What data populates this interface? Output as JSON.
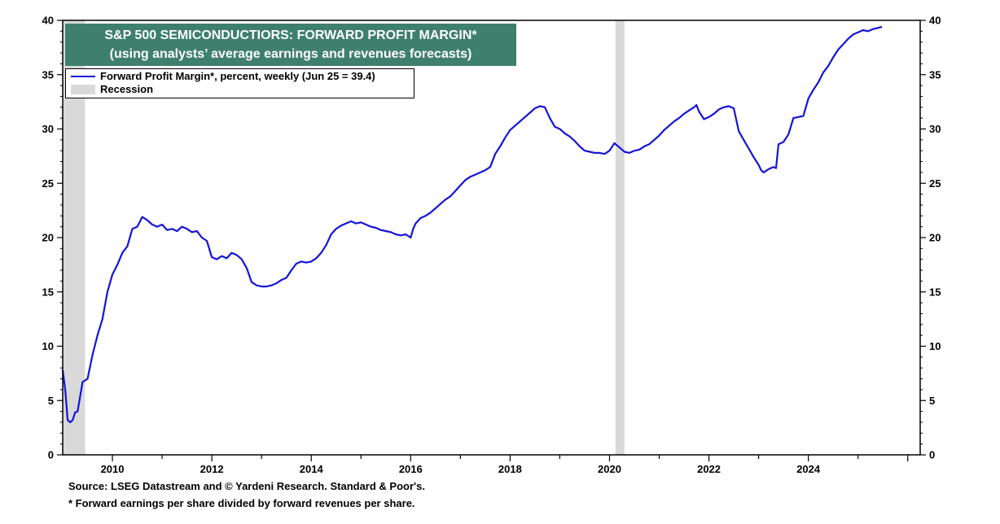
{
  "colors": {
    "line": "#1414d8",
    "recession": "#d9d9d9",
    "title_bg": "#3f7f6e",
    "axis": "#000000"
  },
  "chart_data": {
    "type": "line",
    "title": "S&P 500 SEMICONDUCTIORS: FORWARD PROFIT MARGIN*",
    "subtitle": "(using analysts’ average earnings and revenues forecasts)",
    "xlabel": "",
    "ylabel": "",
    "xlim": [
      2009.0,
      2026.25
    ],
    "ylim": [
      0,
      40
    ],
    "y_ticks": [
      "0",
      "5",
      "10",
      "15",
      "20",
      "25",
      "30",
      "35",
      "40"
    ],
    "x_ticks": [
      "2010",
      "2012",
      "2014",
      "2016",
      "2018",
      "2020",
      "2022",
      "2024"
    ],
    "grid": false,
    "dual_y_axis": true,
    "legend": {
      "placement": "top-left",
      "entries": [
        "Forward Profit Margin*, percent, weekly (Jun 25 = 39.4)",
        "Recession"
      ]
    },
    "recessions": [
      [
        2009.0,
        2009.45
      ],
      [
        2020.12,
        2020.3
      ]
    ],
    "series": [
      {
        "name": "Forward Profit Margin*, percent, weekly (Jun 25 = 39.4)",
        "x": [
          2009.0,
          2009.05,
          2009.1,
          2009.15,
          2009.2,
          2009.25,
          2009.3,
          2009.4,
          2009.5,
          2009.6,
          2009.7,
          2009.8,
          2009.9,
          2010.0,
          2010.1,
          2010.2,
          2010.3,
          2010.4,
          2010.5,
          2010.6,
          2010.7,
          2010.8,
          2010.9,
          2011.0,
          2011.1,
          2011.2,
          2011.3,
          2011.4,
          2011.5,
          2011.6,
          2011.7,
          2011.8,
          2011.9,
          2012.0,
          2012.1,
          2012.2,
          2012.3,
          2012.4,
          2012.5,
          2012.6,
          2012.7,
          2012.8,
          2012.9,
          2013.0,
          2013.1,
          2013.2,
          2013.3,
          2013.4,
          2013.5,
          2013.6,
          2013.7,
          2013.8,
          2013.9,
          2014.0,
          2014.1,
          2014.2,
          2014.3,
          2014.4,
          2014.5,
          2014.6,
          2014.7,
          2014.8,
          2014.9,
          2015.0,
          2015.1,
          2015.2,
          2015.3,
          2015.4,
          2015.5,
          2015.6,
          2015.7,
          2015.8,
          2015.9,
          2016.0,
          2016.05,
          2016.1,
          2016.2,
          2016.3,
          2016.4,
          2016.5,
          2016.6,
          2016.7,
          2016.8,
          2016.9,
          2017.0,
          2017.1,
          2017.2,
          2017.3,
          2017.4,
          2017.5,
          2017.6,
          2017.7,
          2017.8,
          2017.9,
          2018.0,
          2018.1,
          2018.2,
          2018.3,
          2018.4,
          2018.5,
          2018.6,
          2018.7,
          2018.8,
          2018.9,
          2019.0,
          2019.1,
          2019.2,
          2019.3,
          2019.4,
          2019.5,
          2019.6,
          2019.7,
          2019.8,
          2019.9,
          2020.0,
          2020.1,
          2020.2,
          2020.3,
          2020.4,
          2020.5,
          2020.6,
          2020.7,
          2020.8,
          2020.9,
          2021.0,
          2021.1,
          2021.2,
          2021.3,
          2021.4,
          2021.5,
          2021.6,
          2021.7,
          2021.75,
          2021.8,
          2021.9,
          2022.0,
          2022.1,
          2022.2,
          2022.3,
          2022.4,
          2022.5,
          2022.6,
          2022.7,
          2022.8,
          2022.9,
          2023.0,
          2023.05,
          2023.1,
          2023.2,
          2023.3,
          2023.35,
          2023.4,
          2023.5,
          2023.6,
          2023.7,
          2023.8,
          2023.9,
          2024.0,
          2024.1,
          2024.2,
          2024.3,
          2024.4,
          2024.5,
          2024.6,
          2024.7,
          2024.8,
          2024.9,
          2025.0,
          2025.1,
          2025.2,
          2025.3,
          2025.4,
          2025.48
        ],
        "values": [
          7.8,
          6.0,
          3.2,
          3.0,
          3.2,
          3.9,
          4.0,
          6.7,
          7.0,
          9.2,
          11.0,
          12.5,
          15.0,
          16.6,
          17.5,
          18.6,
          19.2,
          20.8,
          21.0,
          21.9,
          21.6,
          21.2,
          21.0,
          21.2,
          20.7,
          20.8,
          20.6,
          21.0,
          20.8,
          20.5,
          20.6,
          20.0,
          19.7,
          18.2,
          18.0,
          18.3,
          18.1,
          18.6,
          18.4,
          18.0,
          17.2,
          15.9,
          15.6,
          15.5,
          15.5,
          15.6,
          15.8,
          16.1,
          16.3,
          17.0,
          17.6,
          17.8,
          17.7,
          17.8,
          18.1,
          18.6,
          19.3,
          20.3,
          20.8,
          21.1,
          21.3,
          21.5,
          21.3,
          21.4,
          21.2,
          21.0,
          20.9,
          20.7,
          20.6,
          20.5,
          20.3,
          20.2,
          20.3,
          20.0,
          20.8,
          21.3,
          21.8,
          22.0,
          22.3,
          22.7,
          23.1,
          23.5,
          23.8,
          24.3,
          24.8,
          25.3,
          25.6,
          25.8,
          26.0,
          26.2,
          26.5,
          27.7,
          28.4,
          29.2,
          29.9,
          30.3,
          30.7,
          31.1,
          31.5,
          31.9,
          32.1,
          32.0,
          31.0,
          30.2,
          30.0,
          29.6,
          29.3,
          28.9,
          28.4,
          28.0,
          27.9,
          27.8,
          27.8,
          27.7,
          28.0,
          28.7,
          28.3,
          27.9,
          27.8,
          28.0,
          28.1,
          28.4,
          28.6,
          29.0,
          29.4,
          29.9,
          30.3,
          30.7,
          31.0,
          31.4,
          31.7,
          32.0,
          32.2,
          31.6,
          30.9,
          31.1,
          31.4,
          31.8,
          32.0,
          32.1,
          31.9,
          29.8,
          29.0,
          28.2,
          27.4,
          26.7,
          26.2,
          26.0,
          26.3,
          26.5,
          26.4,
          28.6,
          28.8,
          29.5,
          31.0,
          31.1,
          31.2,
          32.8,
          33.6,
          34.3,
          35.2,
          35.8,
          36.6,
          37.3,
          37.8,
          38.3,
          38.7,
          38.9,
          39.1,
          39.0,
          39.2,
          39.3,
          39.4
        ]
      }
    ]
  },
  "footnotes": {
    "source": "Source: LSEG Datastream and © Yardeni Research. Standard & Poor's.",
    "note": "* Forward earnings per share divided by forward revenues per share."
  }
}
